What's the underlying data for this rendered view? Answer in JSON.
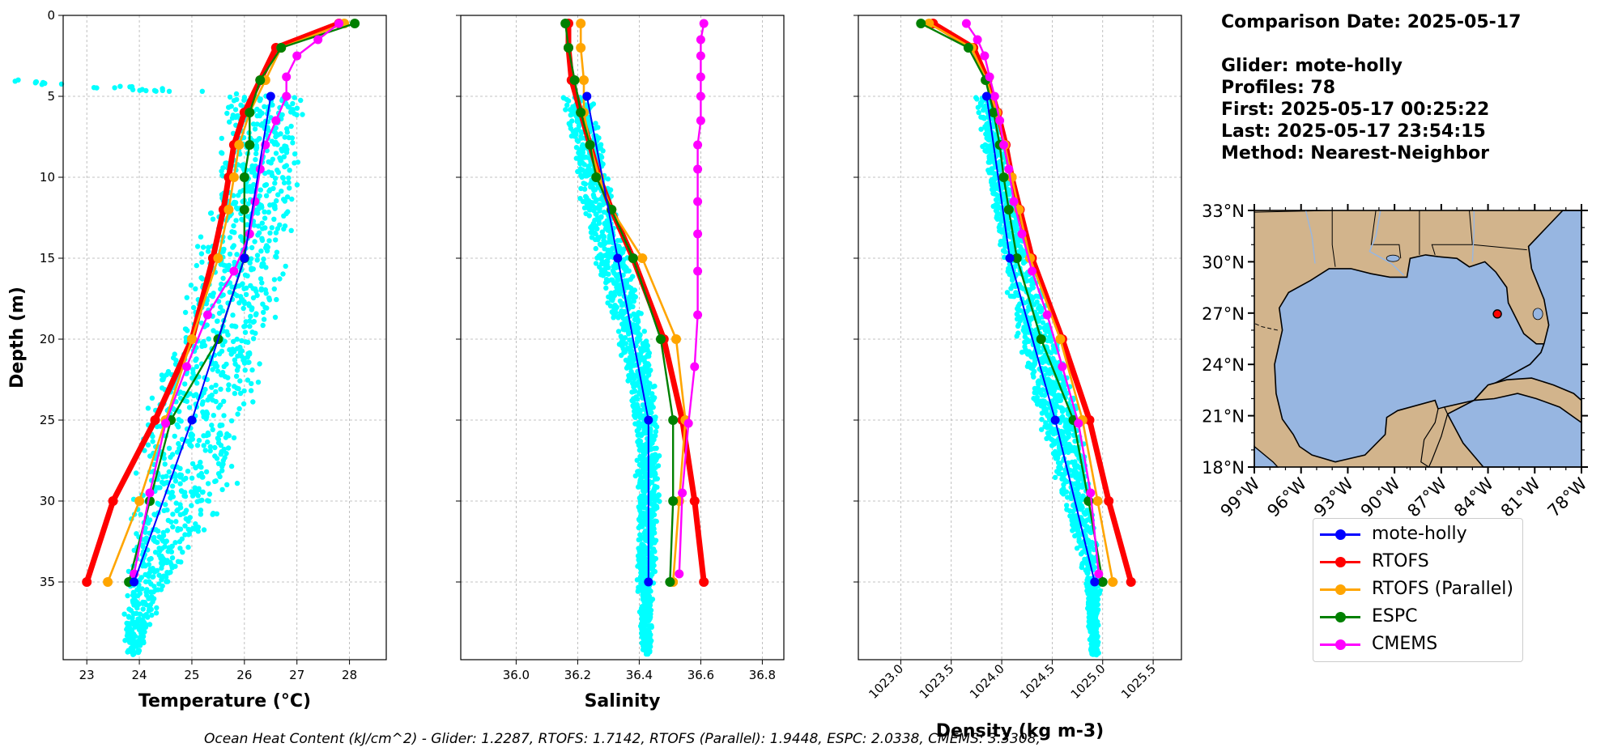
{
  "info": {
    "comparison_date": "Comparison Date: 2025-05-17",
    "glider": "Glider: mote-holly",
    "profiles": "Profiles: 78",
    "first": "First: 2025-05-17 00:25:22",
    "last": "Last: 2025-05-17 23:54:15",
    "method": "Method: Nearest-Neighbor"
  },
  "footer": {
    "ohc_text": "Ocean Heat Content (kJ/cm^2) - Glider: 1.2287,  RTOFS: 1.7142,  RTOFS (Parallel): 1.9448,  ESPC: 2.0338,  CMEMS: 3.3308,"
  },
  "colors": {
    "glider_scatter": "#00ffff",
    "mote-holly": "#0000ff",
    "RTOFS": "#ff0000",
    "RTOFS (Parallel)": "#ffa500",
    "ESPC": "#008000",
    "CMEMS": "#ff00ff",
    "land": "#d2b48c",
    "ocean": "#97b6e1"
  },
  "legend": [
    {
      "label": "mote-holly",
      "color_key": "mote-holly"
    },
    {
      "label": "RTOFS",
      "color_key": "RTOFS"
    },
    {
      "label": "RTOFS (Parallel)",
      "color_key": "RTOFS (Parallel)"
    },
    {
      "label": "ESPC",
      "color_key": "ESPC"
    },
    {
      "label": "CMEMS",
      "color_key": "CMEMS"
    }
  ],
  "chart_data": [
    {
      "type": "line",
      "xlabel": "Temperature (°C)",
      "ylabel": "Depth (m)",
      "xlim": [
        22.55,
        28.7
      ],
      "ylim": [
        39.8,
        0
      ],
      "xticks": [
        23,
        24,
        25,
        26,
        27,
        28
      ],
      "yticks": [
        0,
        5,
        10,
        15,
        20,
        25,
        30,
        35
      ],
      "grid": true,
      "glider_band": [
        [
          0,
          0,
          0
        ],
        [
          5,
          25.6,
          27.2
        ],
        [
          10,
          25.4,
          27.1
        ],
        [
          15,
          25.0,
          26.9
        ],
        [
          20,
          24.6,
          26.5
        ],
        [
          25,
          23.9,
          26.2
        ],
        [
          30,
          23.8,
          25.8
        ],
        [
          35,
          23.7,
          24.6
        ],
        [
          39.5,
          23.7,
          24.0
        ]
      ],
      "series": [
        {
          "name": "mote-holly",
          "depth": [
            5,
            15,
            25,
            35
          ],
          "values": [
            26.5,
            26.0,
            25.0,
            23.9
          ]
        },
        {
          "name": "RTOFS",
          "depth": [
            0.5,
            2,
            4,
            6,
            8,
            10,
            12,
            15,
            20,
            25,
            30,
            35
          ],
          "values": [
            27.8,
            26.6,
            26.3,
            26.0,
            25.8,
            25.7,
            25.6,
            25.4,
            25.0,
            24.3,
            23.5,
            23.0
          ]
        },
        {
          "name": "RTOFS (Parallel)",
          "depth": [
            0.5,
            2,
            4,
            6,
            8,
            10,
            12,
            15,
            20,
            25,
            30,
            35
          ],
          "values": [
            27.9,
            26.7,
            26.4,
            26.1,
            25.9,
            25.8,
            25.7,
            25.5,
            25.0,
            24.5,
            24.0,
            23.4
          ]
        },
        {
          "name": "ESPC",
          "depth": [
            0.5,
            2,
            4,
            6,
            8,
            10,
            12,
            15,
            20,
            25,
            30,
            35
          ],
          "values": [
            28.1,
            26.7,
            26.3,
            26.1,
            26.1,
            26.0,
            26.0,
            26.0,
            25.5,
            24.6,
            24.2,
            23.8
          ]
        },
        {
          "name": "CMEMS",
          "depth": [
            0.5,
            1.5,
            2.5,
            3.8,
            5,
            6.5,
            8,
            9.5,
            11.5,
            13.5,
            15.8,
            18.5,
            21.7,
            25.2,
            29.5,
            34.5
          ],
          "values": [
            27.8,
            27.4,
            27.0,
            26.8,
            26.8,
            26.6,
            26.4,
            26.3,
            26.2,
            26.1,
            25.8,
            25.3,
            24.9,
            24.5,
            24.2,
            23.9
          ]
        }
      ]
    },
    {
      "type": "line",
      "xlabel": "Salinity",
      "ylabel": "",
      "xlim": [
        35.82,
        36.87
      ],
      "ylim": [
        39.8,
        0
      ],
      "xticks": [
        36.0,
        36.2,
        36.4,
        36.6,
        36.8
      ],
      "yticks": [
        0,
        5,
        10,
        15,
        20,
        25,
        30,
        35
      ],
      "grid": true,
      "glider_band": [
        [
          5,
          36.15,
          36.25
        ],
        [
          10,
          36.19,
          36.31
        ],
        [
          15,
          36.25,
          36.37
        ],
        [
          20,
          36.32,
          36.44
        ],
        [
          25,
          36.38,
          36.47
        ],
        [
          30,
          36.39,
          36.47
        ],
        [
          35,
          36.39,
          36.45
        ],
        [
          39.5,
          36.41,
          36.44
        ]
      ],
      "series": [
        {
          "name": "mote-holly",
          "depth": [
            5,
            15,
            25,
            35
          ],
          "values": [
            36.23,
            36.33,
            36.43,
            36.43
          ]
        },
        {
          "name": "RTOFS",
          "depth": [
            0.5,
            2,
            4,
            6,
            8,
            10,
            12,
            15,
            20,
            25,
            30,
            35
          ],
          "values": [
            36.17,
            36.17,
            36.18,
            36.21,
            36.24,
            36.27,
            36.31,
            36.38,
            36.48,
            36.54,
            36.58,
            36.61
          ]
        },
        {
          "name": "RTOFS (Parallel)",
          "depth": [
            0.5,
            2,
            4,
            6,
            8,
            10,
            12,
            15,
            20,
            25,
            30,
            35
          ],
          "values": [
            36.21,
            36.21,
            36.22,
            36.22,
            36.24,
            36.27,
            36.31,
            36.41,
            36.52,
            36.55,
            36.53,
            36.51
          ]
        },
        {
          "name": "ESPC",
          "depth": [
            0.5,
            2,
            4,
            6,
            8,
            10,
            12,
            15,
            20,
            25,
            30,
            35
          ],
          "values": [
            36.16,
            36.17,
            36.19,
            36.21,
            36.24,
            36.26,
            36.31,
            36.38,
            36.47,
            36.51,
            36.51,
            36.5
          ]
        },
        {
          "name": "CMEMS",
          "depth": [
            0.5,
            1.5,
            2.5,
            3.8,
            5,
            6.5,
            8,
            9.5,
            11.5,
            13.5,
            15.8,
            18.5,
            21.7,
            25.2,
            29.5,
            34.5
          ],
          "values": [
            36.61,
            36.6,
            36.6,
            36.6,
            36.6,
            36.6,
            36.59,
            36.59,
            36.59,
            36.59,
            36.59,
            36.59,
            36.58,
            36.56,
            36.54,
            36.53
          ]
        }
      ]
    },
    {
      "type": "line",
      "xlabel": "Density (kg m-3)",
      "ylabel": "",
      "xlim": [
        1022.58,
        1025.78
      ],
      "ylim": [
        39.8,
        0
      ],
      "xticks": [
        1023.0,
        1023.5,
        1024.0,
        1024.5,
        1025.0,
        1025.5
      ],
      "yticks": [
        0,
        5,
        10,
        15,
        20,
        25,
        30,
        35
      ],
      "grid": true,
      "glider_band": [
        [
          5,
          1023.72,
          1023.95
        ],
        [
          10,
          1023.85,
          1024.1
        ],
        [
          15,
          1023.98,
          1024.3
        ],
        [
          20,
          1024.15,
          1024.55
        ],
        [
          25,
          1024.35,
          1024.82
        ],
        [
          30,
          1024.6,
          1024.92
        ],
        [
          35,
          1024.82,
          1024.98
        ],
        [
          39.5,
          1024.88,
          1024.96
        ]
      ],
      "series": [
        {
          "name": "mote-holly",
          "depth": [
            5,
            15,
            25,
            35
          ],
          "values": [
            1023.85,
            1024.08,
            1024.53,
            1024.92
          ]
        },
        {
          "name": "RTOFS",
          "depth": [
            0.5,
            2,
            4,
            6,
            8,
            10,
            12,
            15,
            20,
            25,
            30,
            35
          ],
          "values": [
            1023.32,
            1023.72,
            1023.86,
            1023.96,
            1024.04,
            1024.1,
            1024.18,
            1024.3,
            1024.6,
            1024.87,
            1025.06,
            1025.28
          ]
        },
        {
          "name": "RTOFS (Parallel)",
          "depth": [
            0.5,
            2,
            4,
            6,
            8,
            10,
            12,
            15,
            20,
            25,
            30,
            35
          ],
          "values": [
            1023.28,
            1023.7,
            1023.85,
            1023.95,
            1024.03,
            1024.1,
            1024.17,
            1024.28,
            1024.58,
            1024.8,
            1024.95,
            1025.1
          ]
        },
        {
          "name": "ESPC",
          "depth": [
            0.5,
            2,
            4,
            6,
            8,
            10,
            12,
            15,
            20,
            25,
            30,
            35
          ],
          "values": [
            1023.2,
            1023.67,
            1023.84,
            1023.92,
            1023.98,
            1024.02,
            1024.07,
            1024.15,
            1024.39,
            1024.71,
            1024.86,
            1025.0
          ]
        },
        {
          "name": "CMEMS",
          "depth": [
            0.5,
            1.5,
            2.5,
            3.8,
            5,
            6.5,
            8,
            9.5,
            11.5,
            13.5,
            15.8,
            18.5,
            21.7,
            25.2,
            29.5,
            34.5
          ],
          "values": [
            1023.65,
            1023.76,
            1023.83,
            1023.88,
            1023.93,
            1023.98,
            1024.02,
            1024.07,
            1024.12,
            1024.2,
            1024.3,
            1024.45,
            1024.6,
            1024.76,
            1024.88,
            1024.96
          ]
        }
      ]
    },
    {
      "type": "map",
      "title": "",
      "lon_range": [
        -99,
        -78
      ],
      "lat_range": [
        18,
        33
      ],
      "lon_ticks": [
        "99°W",
        "96°W",
        "93°W",
        "90°W",
        "87°W",
        "84°W",
        "81°W",
        "78°W"
      ],
      "lat_ticks": [
        "33°N",
        "30°N",
        "27°N",
        "24°N",
        "21°N",
        "18°N"
      ],
      "glider_marker": {
        "lon": -83.4,
        "lat": 26.95
      }
    }
  ]
}
